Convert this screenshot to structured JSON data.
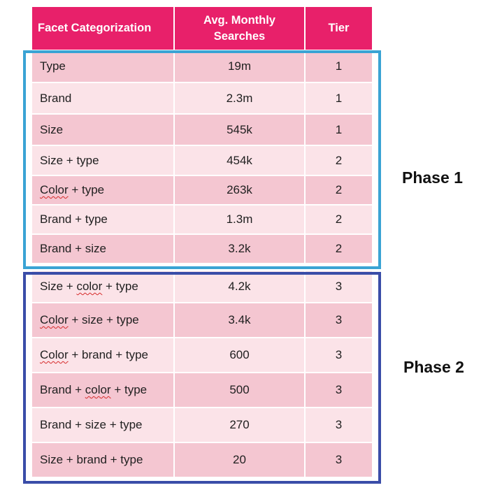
{
  "table": {
    "headers": {
      "facet": "Facet Categorization",
      "searches_line1": "Avg. Monthly",
      "searches_line2": "Searches",
      "tier": "Tier"
    },
    "rows": [
      {
        "facet": "Type",
        "searches": "19m",
        "tier": "1"
      },
      {
        "facet": "Brand",
        "searches": "2.3m",
        "tier": "1"
      },
      {
        "facet": "Size",
        "searches": "545k",
        "tier": "1"
      },
      {
        "facet": "Size + type",
        "searches": "454k",
        "tier": "2"
      },
      {
        "facet_a": "Color",
        "facet_b": " + type",
        "searches": "263k",
        "tier": "2"
      },
      {
        "facet": "Brand + type",
        "searches": "1.3m",
        "tier": "2"
      },
      {
        "facet": "Brand + size",
        "searches": "3.2k",
        "tier": "2"
      },
      {
        "facet_a": "Size + ",
        "facet_b": "color",
        "facet_c": " + type",
        "searches": "4.2k",
        "tier": "3"
      },
      {
        "facet_a": "Color",
        "facet_b": " + size + type",
        "searches": "3.4k",
        "tier": "3"
      },
      {
        "facet_a": "Color",
        "facet_b": " + brand + type",
        "searches": "600",
        "tier": "3"
      },
      {
        "facet_a": "Brand + ",
        "facet_b": "color",
        "facet_c": " + type",
        "searches": "500",
        "tier": "3"
      },
      {
        "facet": "Brand + size + type",
        "searches": "270",
        "tier": "3"
      },
      {
        "facet": "Size + brand + type",
        "searches": "20",
        "tier": "3"
      }
    ]
  },
  "phases": {
    "phase1_label": "Phase 1",
    "phase2_label": "Phase 2"
  },
  "colors": {
    "header_bg": "#e8206a",
    "row_dark": "#f4c6d1",
    "row_light": "#fbe3e8",
    "phase1_border": "#3aa3d4",
    "phase2_border": "#3a4da8"
  }
}
